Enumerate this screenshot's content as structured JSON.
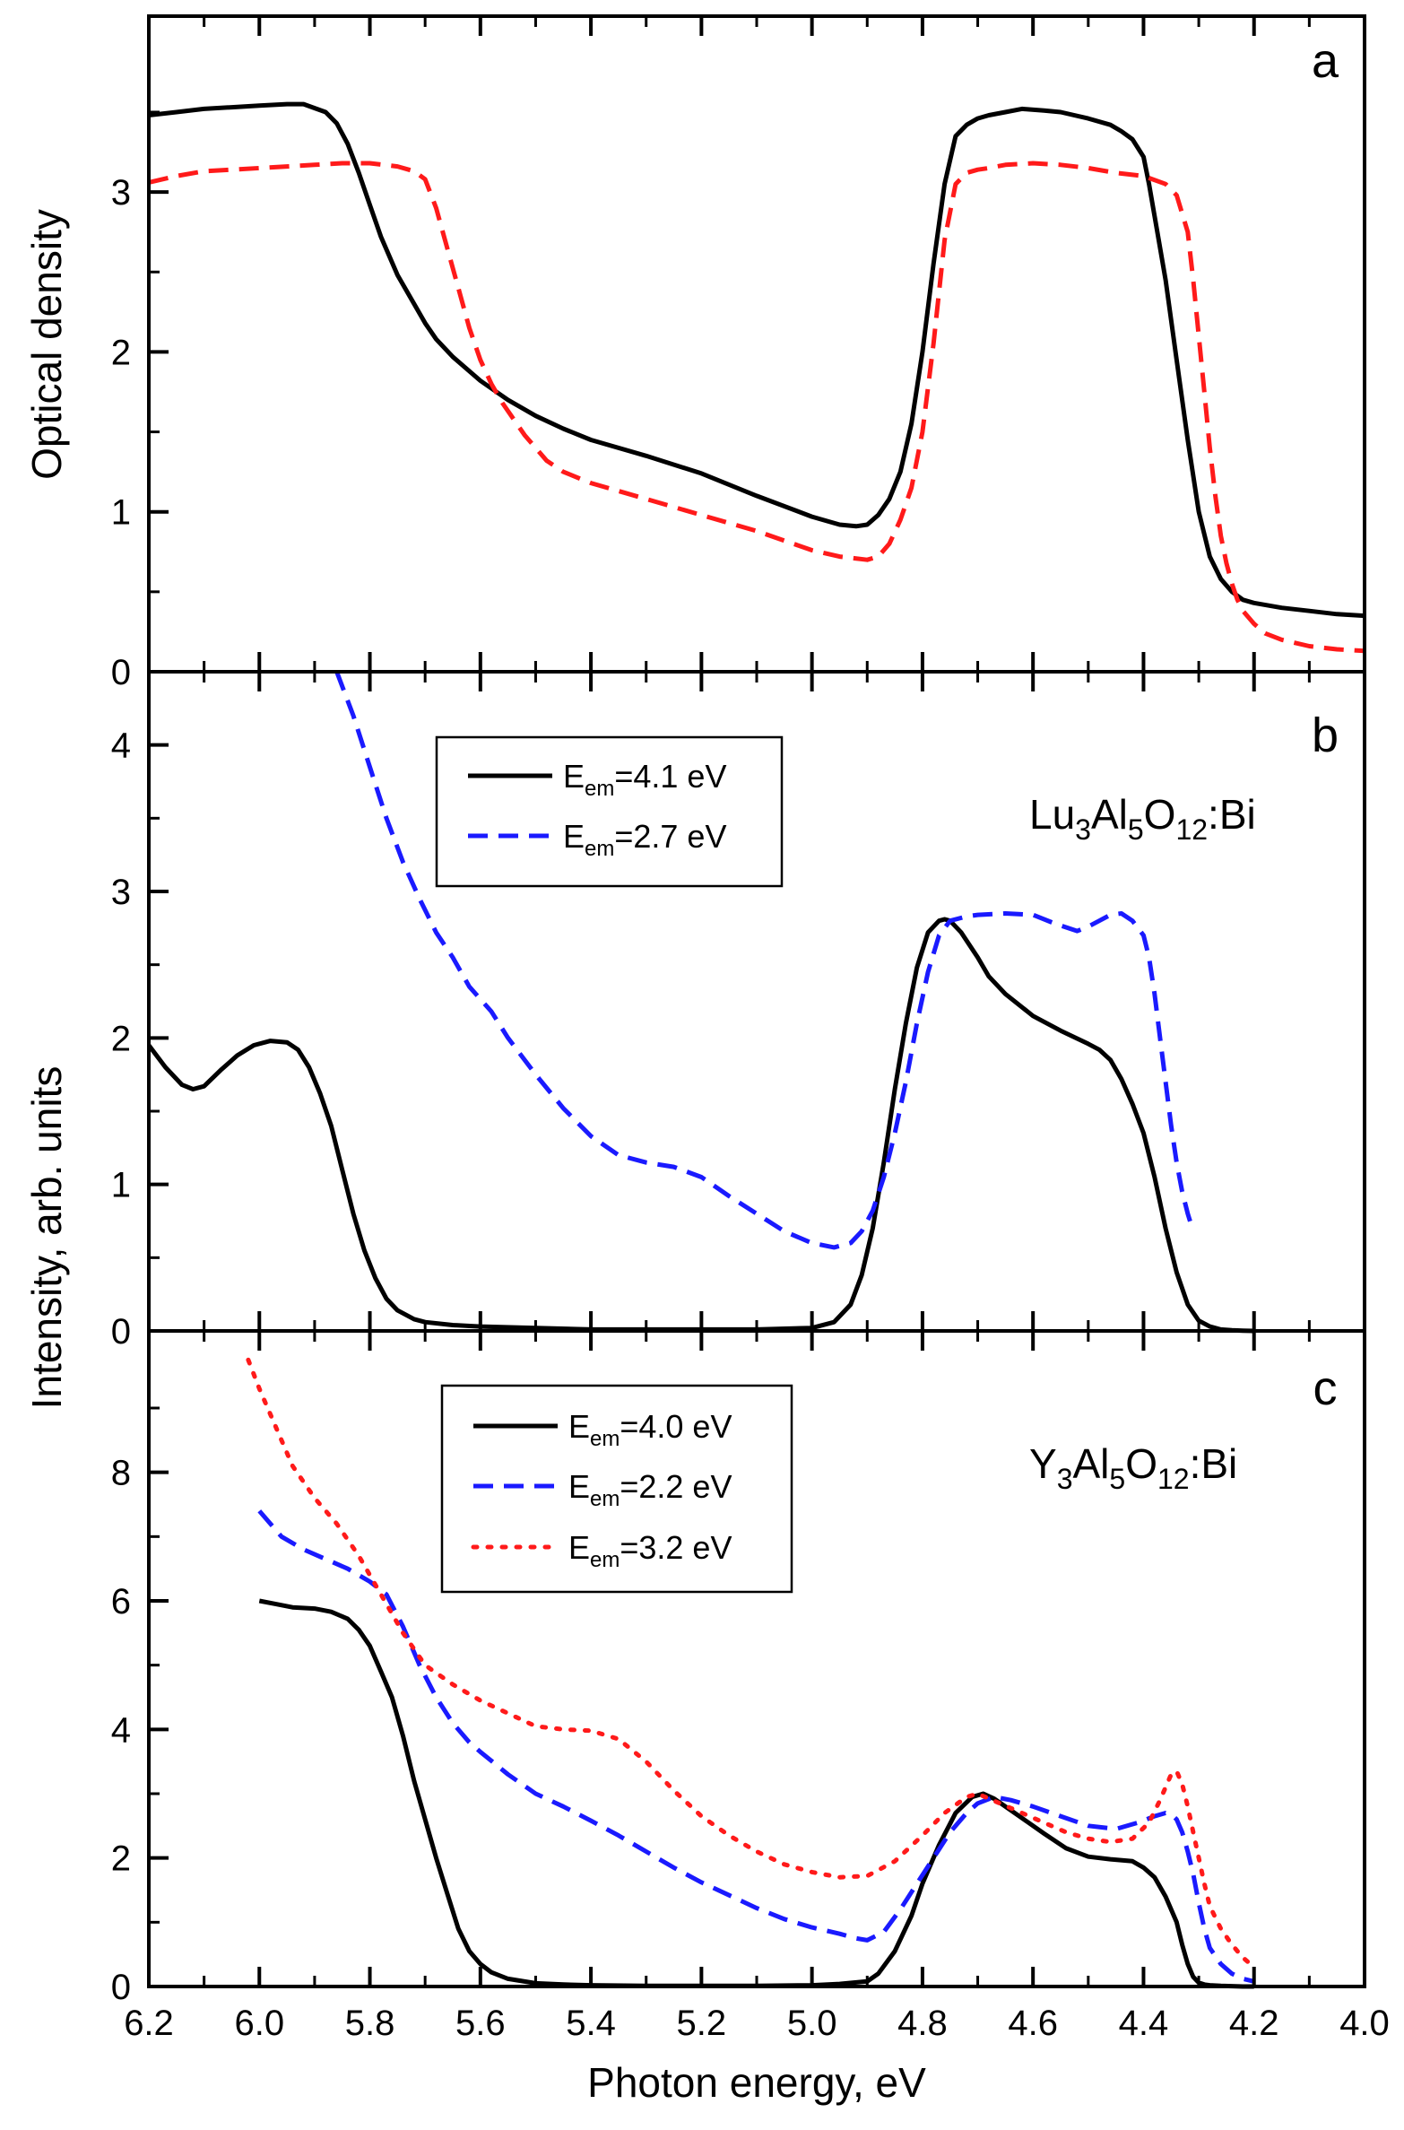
{
  "colors": {
    "black": "#000000",
    "red": "#ff1a1a",
    "blue": "#1a1aff"
  },
  "chart_data": [
    {
      "panel": "a",
      "type": "line",
      "x_reversed": true,
      "xlim": [
        6.2,
        4.0
      ],
      "ylim": [
        0,
        4.1
      ],
      "ylabel": "Optical density",
      "y_ticks": [
        0,
        1,
        2,
        3
      ],
      "series": [
        {
          "style": "solid",
          "color": "#000000",
          "x": [
            6.2,
            6.15,
            6.1,
            6.05,
            6.0,
            5.95,
            5.92,
            5.88,
            5.86,
            5.84,
            5.82,
            5.8,
            5.78,
            5.75,
            5.72,
            5.7,
            5.68,
            5.65,
            5.6,
            5.55,
            5.5,
            5.45,
            5.4,
            5.3,
            5.2,
            5.1,
            5.0,
            4.95,
            4.92,
            4.9,
            4.88,
            4.86,
            4.84,
            4.82,
            4.8,
            4.78,
            4.76,
            4.74,
            4.72,
            4.7,
            4.68,
            4.65,
            4.62,
            4.58,
            4.55,
            4.5,
            4.46,
            4.44,
            4.42,
            4.4,
            4.39,
            4.38,
            4.36,
            4.34,
            4.32,
            4.3,
            4.28,
            4.26,
            4.24,
            4.22,
            4.2,
            4.15,
            4.1,
            4.05,
            4.0
          ],
          "y": [
            3.48,
            3.5,
            3.52,
            3.53,
            3.54,
            3.55,
            3.55,
            3.5,
            3.43,
            3.3,
            3.12,
            2.92,
            2.72,
            2.48,
            2.3,
            2.18,
            2.08,
            1.97,
            1.82,
            1.7,
            1.6,
            1.52,
            1.45,
            1.35,
            1.24,
            1.1,
            0.97,
            0.92,
            0.91,
            0.92,
            0.98,
            1.08,
            1.25,
            1.55,
            2.0,
            2.55,
            3.05,
            3.35,
            3.42,
            3.46,
            3.48,
            3.5,
            3.52,
            3.51,
            3.5,
            3.46,
            3.42,
            3.38,
            3.33,
            3.22,
            3.05,
            2.85,
            2.45,
            1.95,
            1.45,
            1.0,
            0.72,
            0.58,
            0.5,
            0.45,
            0.43,
            0.4,
            0.38,
            0.36,
            0.35
          ]
        },
        {
          "style": "dashed",
          "color": "#ff1a1a",
          "x": [
            6.2,
            6.15,
            6.1,
            6.05,
            6.0,
            5.95,
            5.9,
            5.85,
            5.8,
            5.75,
            5.72,
            5.7,
            5.68,
            5.66,
            5.64,
            5.62,
            5.6,
            5.58,
            5.56,
            5.52,
            5.48,
            5.45,
            5.4,
            5.3,
            5.2,
            5.1,
            5.0,
            4.95,
            4.9,
            4.88,
            4.86,
            4.84,
            4.82,
            4.8,
            4.78,
            4.76,
            4.74,
            4.72,
            4.7,
            4.68,
            4.65,
            4.6,
            4.55,
            4.5,
            4.45,
            4.4,
            4.36,
            4.34,
            4.32,
            4.31,
            4.3,
            4.29,
            4.28,
            4.27,
            4.26,
            4.25,
            4.24,
            4.23,
            4.22,
            4.2,
            4.18,
            4.15,
            4.1,
            4.05,
            4.0
          ],
          "y": [
            3.06,
            3.1,
            3.13,
            3.14,
            3.15,
            3.16,
            3.17,
            3.18,
            3.18,
            3.16,
            3.13,
            3.08,
            2.9,
            2.65,
            2.4,
            2.15,
            1.95,
            1.8,
            1.68,
            1.48,
            1.32,
            1.25,
            1.18,
            1.08,
            0.98,
            0.88,
            0.76,
            0.72,
            0.7,
            0.72,
            0.8,
            0.95,
            1.15,
            1.5,
            2.05,
            2.7,
            3.05,
            3.12,
            3.14,
            3.15,
            3.17,
            3.18,
            3.17,
            3.15,
            3.12,
            3.1,
            3.05,
            2.98,
            2.75,
            2.45,
            2.1,
            1.75,
            1.4,
            1.1,
            0.85,
            0.68,
            0.55,
            0.45,
            0.38,
            0.3,
            0.24,
            0.2,
            0.16,
            0.14,
            0.13
          ]
        }
      ]
    },
    {
      "panel": "b",
      "type": "line",
      "x_reversed": true,
      "xlim": [
        6.2,
        4.0
      ],
      "ylim": [
        0,
        4.5
      ],
      "y_ticks": [
        0,
        1,
        2,
        3,
        4
      ],
      "annotation": "Lu3Al5O12:Bi",
      "series": [
        {
          "name": "Eem=4.1 eV",
          "style": "solid",
          "color": "#000000",
          "x": [
            6.2,
            6.17,
            6.14,
            6.12,
            6.1,
            6.07,
            6.04,
            6.01,
            5.98,
            5.95,
            5.93,
            5.91,
            5.89,
            5.87,
            5.85,
            5.83,
            5.81,
            5.79,
            5.77,
            5.75,
            5.72,
            5.7,
            5.65,
            5.6,
            5.5,
            5.4,
            5.3,
            5.2,
            5.1,
            5.0,
            4.96,
            4.93,
            4.91,
            4.89,
            4.87,
            4.85,
            4.83,
            4.81,
            4.79,
            4.77,
            4.76,
            4.75,
            4.73,
            4.7,
            4.68,
            4.65,
            4.6,
            4.55,
            4.5,
            4.48,
            4.46,
            4.44,
            4.42,
            4.4,
            4.38,
            4.36,
            4.34,
            4.32,
            4.3,
            4.28,
            4.26,
            4.24,
            4.22,
            4.2
          ],
          "y": [
            1.95,
            1.8,
            1.68,
            1.65,
            1.67,
            1.78,
            1.88,
            1.95,
            1.98,
            1.97,
            1.92,
            1.8,
            1.62,
            1.4,
            1.1,
            0.8,
            0.55,
            0.36,
            0.22,
            0.14,
            0.08,
            0.06,
            0.04,
            0.03,
            0.02,
            0.01,
            0.01,
            0.01,
            0.01,
            0.02,
            0.06,
            0.18,
            0.38,
            0.7,
            1.15,
            1.65,
            2.1,
            2.48,
            2.72,
            2.8,
            2.81,
            2.8,
            2.72,
            2.55,
            2.42,
            2.3,
            2.15,
            2.05,
            1.96,
            1.92,
            1.85,
            1.72,
            1.55,
            1.35,
            1.05,
            0.7,
            0.4,
            0.18,
            0.07,
            0.03,
            0.01,
            0.005,
            0.002,
            0.0
          ]
        },
        {
          "name": "Eem=2.7 eV",
          "style": "dashed",
          "color": "#1a1aff",
          "x": [
            5.86,
            5.83,
            5.8,
            5.77,
            5.74,
            5.71,
            5.68,
            5.65,
            5.62,
            5.58,
            5.55,
            5.5,
            5.45,
            5.4,
            5.35,
            5.3,
            5.25,
            5.2,
            5.15,
            5.1,
            5.05,
            5.0,
            4.96,
            4.93,
            4.91,
            4.89,
            4.87,
            4.85,
            4.83,
            4.81,
            4.79,
            4.77,
            4.75,
            4.72,
            4.7,
            4.65,
            4.6,
            4.56,
            4.52,
            4.5,
            4.48,
            4.46,
            4.44,
            4.42,
            4.4,
            4.39,
            4.38,
            4.37,
            4.36,
            4.35,
            4.34,
            4.33,
            4.32,
            4.31
          ],
          "y": [
            4.55,
            4.2,
            3.85,
            3.5,
            3.2,
            2.95,
            2.72,
            2.55,
            2.35,
            2.18,
            2.0,
            1.75,
            1.52,
            1.33,
            1.2,
            1.15,
            1.12,
            1.05,
            0.92,
            0.8,
            0.68,
            0.6,
            0.57,
            0.6,
            0.68,
            0.82,
            1.05,
            1.35,
            1.7,
            2.1,
            2.45,
            2.7,
            2.8,
            2.83,
            2.84,
            2.85,
            2.84,
            2.78,
            2.73,
            2.76,
            2.8,
            2.84,
            2.85,
            2.8,
            2.7,
            2.55,
            2.3,
            2.0,
            1.7,
            1.4,
            1.15,
            0.95,
            0.8,
            0.68
          ]
        }
      ]
    },
    {
      "panel": "c",
      "type": "line",
      "x_reversed": true,
      "xlim": [
        6.2,
        4.0
      ],
      "ylim": [
        0,
        10.2
      ],
      "xlabel": "Photon energy, eV",
      "x_ticks": [
        6.2,
        6.0,
        5.8,
        5.6,
        5.4,
        5.2,
        5.0,
        4.8,
        4.6,
        4.4,
        4.2,
        4.0
      ],
      "y_ticks": [
        0,
        2,
        4,
        6,
        8
      ],
      "annotation": "Y3Al5O12:Bi",
      "series": [
        {
          "name": "Eem=4.0 eV",
          "style": "solid",
          "color": "#000000",
          "x": [
            6.0,
            5.97,
            5.94,
            5.9,
            5.87,
            5.84,
            5.82,
            5.8,
            5.78,
            5.76,
            5.74,
            5.72,
            5.7,
            5.68,
            5.66,
            5.64,
            5.62,
            5.6,
            5.58,
            5.55,
            5.5,
            5.45,
            5.4,
            5.3,
            5.2,
            5.1,
            5.0,
            4.95,
            4.9,
            4.88,
            4.85,
            4.82,
            4.8,
            4.77,
            4.74,
            4.71,
            4.69,
            4.67,
            4.65,
            4.62,
            4.58,
            4.54,
            4.5,
            4.46,
            4.42,
            4.4,
            4.38,
            4.36,
            4.34,
            4.33,
            4.32,
            4.31,
            4.3,
            4.29,
            4.28,
            4.26,
            4.24,
            4.22,
            4.2
          ],
          "y": [
            6.0,
            5.95,
            5.9,
            5.88,
            5.83,
            5.72,
            5.55,
            5.3,
            4.9,
            4.5,
            3.9,
            3.2,
            2.6,
            2.0,
            1.45,
            0.9,
            0.55,
            0.35,
            0.22,
            0.12,
            0.05,
            0.03,
            0.02,
            0.01,
            0.01,
            0.01,
            0.02,
            0.04,
            0.08,
            0.2,
            0.55,
            1.1,
            1.6,
            2.2,
            2.7,
            2.95,
            3.0,
            2.92,
            2.8,
            2.62,
            2.38,
            2.15,
            2.02,
            1.98,
            1.95,
            1.85,
            1.7,
            1.4,
            1.0,
            0.65,
            0.35,
            0.15,
            0.06,
            0.03,
            0.02,
            0.01,
            0.005,
            0.0,
            0.0
          ]
        },
        {
          "name": "Eem=2.2 eV",
          "style": "dashed",
          "color": "#1a1aff",
          "x": [
            6.0,
            5.96,
            5.92,
            5.88,
            5.84,
            5.8,
            5.77,
            5.74,
            5.71,
            5.68,
            5.65,
            5.62,
            5.6,
            5.55,
            5.5,
            5.45,
            5.4,
            5.35,
            5.3,
            5.25,
            5.2,
            5.15,
            5.1,
            5.05,
            5.0,
            4.95,
            4.92,
            4.9,
            4.87,
            4.84,
            4.81,
            4.78,
            4.75,
            4.72,
            4.7,
            4.67,
            4.64,
            4.6,
            4.55,
            4.5,
            4.45,
            4.41,
            4.38,
            4.36,
            4.35,
            4.34,
            4.33,
            4.32,
            4.31,
            4.3,
            4.29,
            4.28,
            4.26,
            4.24,
            4.22,
            4.2
          ],
          "y": [
            7.4,
            7.0,
            6.8,
            6.65,
            6.5,
            6.3,
            6.1,
            5.6,
            5.0,
            4.5,
            4.1,
            3.8,
            3.65,
            3.3,
            3.0,
            2.8,
            2.58,
            2.35,
            2.1,
            1.85,
            1.62,
            1.42,
            1.22,
            1.05,
            0.92,
            0.82,
            0.75,
            0.72,
            0.85,
            1.2,
            1.6,
            2.0,
            2.4,
            2.7,
            2.85,
            2.95,
            2.9,
            2.8,
            2.65,
            2.5,
            2.45,
            2.55,
            2.65,
            2.7,
            2.68,
            2.6,
            2.4,
            2.1,
            1.75,
            1.3,
            0.9,
            0.6,
            0.35,
            0.2,
            0.12,
            0.08
          ]
        },
        {
          "name": "Eem=3.2 eV",
          "style": "dotted",
          "color": "#ff1a1a",
          "x": [
            6.02,
            6.0,
            5.97,
            5.94,
            5.9,
            5.86,
            5.82,
            5.78,
            5.74,
            5.7,
            5.65,
            5.6,
            5.55,
            5.5,
            5.45,
            5.4,
            5.35,
            5.3,
            5.25,
            5.2,
            5.15,
            5.1,
            5.05,
            5.0,
            4.95,
            4.9,
            4.85,
            4.8,
            4.76,
            4.72,
            4.7,
            4.66,
            4.62,
            4.58,
            4.54,
            4.5,
            4.46,
            4.42,
            4.39,
            4.37,
            4.35,
            4.34,
            4.33,
            4.32,
            4.31,
            4.3,
            4.29,
            4.28,
            4.26,
            4.24,
            4.22,
            4.2
          ],
          "y": [
            9.75,
            9.3,
            8.7,
            8.1,
            7.6,
            7.2,
            6.7,
            6.1,
            5.5,
            5.0,
            4.7,
            4.45,
            4.25,
            4.05,
            4.0,
            3.98,
            3.85,
            3.5,
            3.05,
            2.65,
            2.35,
            2.1,
            1.9,
            1.78,
            1.7,
            1.72,
            1.95,
            2.35,
            2.7,
            2.95,
            3.0,
            2.85,
            2.7,
            2.55,
            2.4,
            2.3,
            2.25,
            2.3,
            2.55,
            2.9,
            3.3,
            3.35,
            3.15,
            2.8,
            2.4,
            2.0,
            1.6,
            1.25,
            0.9,
            0.65,
            0.45,
            0.3
          ]
        }
      ]
    }
  ],
  "labels": {
    "panel_a": "a",
    "panel_b": "b",
    "panel_c": "c",
    "y_title_a": "Optical density",
    "y_title_bc": "Intensity, arb. units",
    "x_title": "Photon energy, eV",
    "compound_b": {
      "el1": "Lu",
      "n1": "3",
      "el2": "Al",
      "n2": "5",
      "el3": "O",
      "n3": "12",
      "suffix": ":Bi"
    },
    "compound_c": {
      "el1": "Y",
      "n1": "3",
      "el2": "Al",
      "n2": "5",
      "el3": "O",
      "n3": "12",
      "suffix": ":Bi"
    }
  },
  "legend_b": [
    {
      "prefix": "E",
      "sub": "em",
      "value": "=4.1 eV"
    },
    {
      "prefix": "E",
      "sub": "em",
      "value": "=2.7 eV"
    }
  ],
  "legend_c": [
    {
      "prefix": "E",
      "sub": "em",
      "value": "=4.0 eV"
    },
    {
      "prefix": "E",
      "sub": "em",
      "value": "=2.2 eV"
    },
    {
      "prefix": "E",
      "sub": "em",
      "value": "=3.2 eV"
    }
  ]
}
